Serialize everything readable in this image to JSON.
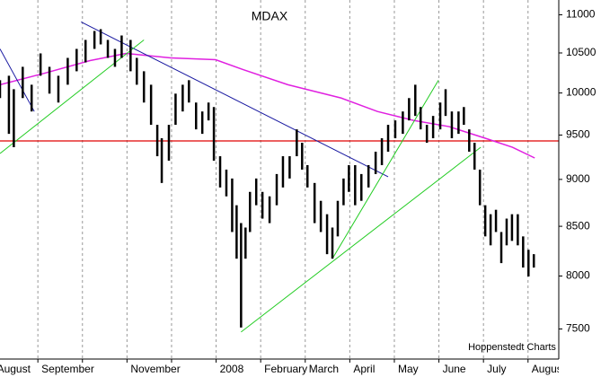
{
  "chart_data": {
    "type": "range-bar",
    "title": "MDAX",
    "source": "Hoppenstedt Charts",
    "color": "#000000",
    "log_scale": true,
    "xlim": [
      0.15,
      12.69
    ],
    "ylim": [
      7230,
      11200
    ],
    "yticks": [
      7500,
      8000,
      8500,
      9000,
      9500,
      10000,
      10500,
      11000
    ],
    "xticks": [
      {
        "value": 0,
        "label": "August"
      },
      {
        "value": 1,
        "label": "September"
      },
      {
        "value": 2,
        "label": null
      },
      {
        "value": 3,
        "label": "November"
      },
      {
        "value": 4,
        "label": null
      },
      {
        "value": 5,
        "label": "2008"
      },
      {
        "value": 6,
        "label": "February"
      },
      {
        "value": 7,
        "label": "March"
      },
      {
        "value": 8,
        "label": "April"
      },
      {
        "value": 9,
        "label": "May"
      },
      {
        "value": 10,
        "label": "June"
      },
      {
        "value": 11,
        "label": "July"
      },
      {
        "value": 12,
        "label": "August"
      }
    ],
    "x": [
      0.15,
      0.35,
      0.46,
      0.66,
      0.86,
      1.06,
      1.26,
      1.46,
      1.67,
      1.87,
      2.07,
      2.27,
      2.41,
      2.57,
      2.73,
      2.88,
      3.08,
      3.22,
      3.38,
      3.54,
      3.68,
      3.78,
      3.94,
      4.09,
      4.25,
      4.39,
      4.55,
      4.69,
      4.83,
      4.95,
      5.09,
      5.23,
      5.36,
      5.46,
      5.56,
      5.66,
      5.76,
      5.9,
      6.04,
      6.2,
      6.36,
      6.5,
      6.65,
      6.81,
      6.93,
      7.05,
      7.21,
      7.35,
      7.49,
      7.61,
      7.73,
      7.86,
      7.98,
      8.12,
      8.26,
      8.42,
      8.58,
      8.72,
      8.86,
      9.02,
      9.19,
      9.33,
      9.47,
      9.59,
      9.73,
      9.87,
      10.03,
      10.15,
      10.29,
      10.44,
      10.56,
      10.68,
      10.8,
      10.92,
      11.04,
      11.16,
      11.28,
      11.4,
      11.52,
      11.64,
      11.77,
      11.89,
      12.01,
      12.13
    ],
    "high": [
      10157,
      10212,
      10046,
      10324,
      10101,
      10494,
      10324,
      10212,
      10437,
      10552,
      10668,
      10785,
      10809,
      10668,
      10552,
      10726,
      10668,
      10437,
      10268,
      10101,
      9619,
      9463,
      9619,
      9992,
      10101,
      10157,
      9884,
      9777,
      9884,
      9830,
      9258,
      9108,
      9010,
      8721,
      8533,
      8487,
      8864,
      9010,
      8864,
      8816,
      9059,
      9258,
      9258,
      9566,
      9411,
      9158,
      8961,
      8768,
      8626,
      8487,
      8768,
      9010,
      9158,
      9158,
      9059,
      9158,
      9309,
      9463,
      9619,
      9671,
      9777,
      9938,
      10101,
      9830,
      9619,
      9724,
      9884,
      10046,
      9777,
      9777,
      9830,
      9566,
      9411,
      9108,
      8721,
      8626,
      8673,
      8441,
      8580,
      8626,
      8626,
      8396,
      8260,
      8216
    ],
    "low": [
      9938,
      9514,
      9360,
      9938,
      9777,
      10212,
      9992,
      9884,
      10101,
      10268,
      10380,
      10552,
      10610,
      10437,
      10324,
      10437,
      10268,
      10101,
      9884,
      9619,
      9258,
      8961,
      9208,
      9619,
      9777,
      9884,
      9566,
      9514,
      9671,
      9208,
      8912,
      8816,
      8441,
      8171,
      7513,
      8171,
      8441,
      8721,
      8580,
      8533,
      8721,
      8912,
      9010,
      9258,
      9108,
      8912,
      8533,
      8441,
      8216,
      8171,
      8396,
      8721,
      8864,
      8721,
      8768,
      8912,
      9059,
      9158,
      9309,
      9463,
      9514,
      9671,
      9724,
      9566,
      9411,
      9463,
      9566,
      9724,
      9463,
      9514,
      9619,
      9309,
      9108,
      8721,
      8396,
      8305,
      8441,
      8127,
      8305,
      8350,
      8305,
      8083,
      7996,
      8083
    ],
    "moving_average": {
      "color": "#e020e0",
      "x": [
        0.15,
        1.16,
        2.17,
        2.98,
        3.98,
        4.99,
        5.6,
        6.61,
        7.81,
        8.62,
        9.43,
        10.23,
        11.04,
        11.65,
        12.15
      ],
      "values": [
        10101,
        10245,
        10403,
        10494,
        10437,
        10414,
        10290,
        10101,
        9938,
        9777,
        9671,
        9598,
        9463,
        9360,
        9238
      ]
    },
    "trend_lines": [
      {
        "color": "#1818a0",
        "x": [
          1.97,
          8.86
        ],
        "values": [
          10904,
          9029
        ]
      },
      {
        "color": "#1818a0",
        "x": [
          0.15,
          0.92
        ],
        "values": [
          10552,
          9777
        ]
      },
      {
        "color": "#22cc22",
        "x": [
          0.15,
          3.38
        ],
        "values": [
          9289,
          10668
        ]
      },
      {
        "color": "#22cc22",
        "x": [
          5.56,
          10.94
        ],
        "values": [
          7472,
          9360
        ]
      },
      {
        "color": "#22cc22",
        "x": [
          7.61,
          9.99
        ],
        "values": [
          8171,
          10157
        ]
      }
    ],
    "hlines": [
      {
        "color": "#e00000",
        "value": 9432
      }
    ],
    "grid": true
  }
}
